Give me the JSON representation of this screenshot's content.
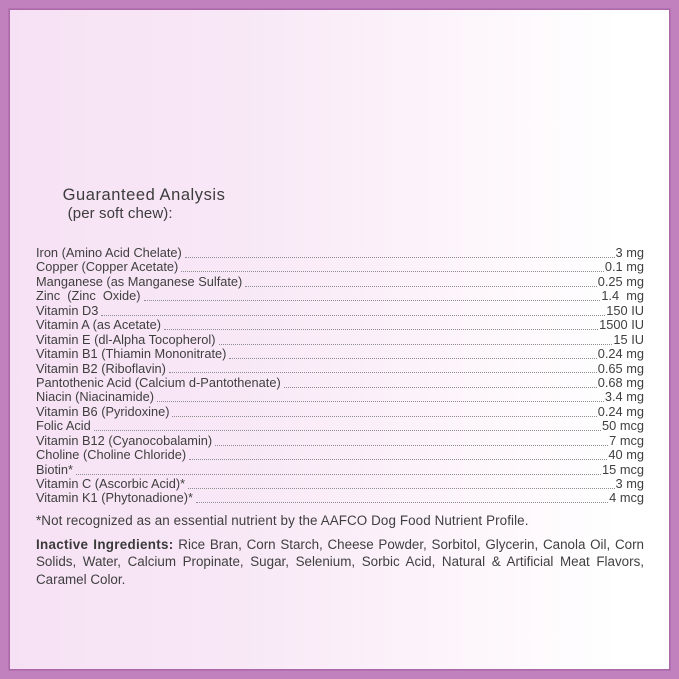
{
  "page": {
    "border_color": "#c181bf",
    "background_left_color": "#f6e1f4",
    "background_right_color": "#ffffff",
    "text_color": "#3f3f3f",
    "leader_dot_color": "#8d8d8d"
  },
  "label": {
    "heading_title": "Guaranteed Analysis",
    "heading_suffix": "(per soft chew):",
    "rows": [
      {
        "name": "Iron (Amino Acid Chelate)",
        "value": "3 mg"
      },
      {
        "name": "Copper (Copper Acetate)",
        "value": "0.1 mg"
      },
      {
        "name": "Manganese (as Manganese Sulfate)",
        "value": "0.25 mg"
      },
      {
        "name": "Zinc  (Zinc  Oxide)",
        "value": "1.4  mg"
      },
      {
        "name": "Vitamin D3",
        "value": "150 IU"
      },
      {
        "name": "Vitamin A (as Acetate)",
        "value": "1500 IU"
      },
      {
        "name": "Vitamin E (dl-Alpha Tocopherol)",
        "value": "15 IU"
      },
      {
        "name": "Vitamin B1 (Thiamin Mononitrate)",
        "value": "0.24 mg"
      },
      {
        "name": "Vitamin B2 (Riboflavin)",
        "value": "0.65 mg"
      },
      {
        "name": "Pantothenic Acid (Calcium d-Pantothenate)",
        "value": "0.68 mg"
      },
      {
        "name": "Niacin (Niacinamide)",
        "value": "3.4 mg"
      },
      {
        "name": "Vitamin B6 (Pyridoxine)",
        "value": "0.24 mg"
      },
      {
        "name": "Folic Acid",
        "value": "50 mcg"
      },
      {
        "name": "Vitamin B12 (Cyanocobalamin)",
        "value": "7 mcg"
      },
      {
        "name": "Choline (Choline Chloride)",
        "value": "40 mg"
      },
      {
        "name": "Biotin*",
        "value": "15 mcg"
      },
      {
        "name": "Vitamin C (Ascorbic Acid)*",
        "value": "3 mg"
      },
      {
        "name": "Vitamin K1 (Phytonadione)*",
        "value": "4 mcg"
      }
    ],
    "footnote": "*Not recognized as an essential nutrient by the AAFCO Dog Food Nutrient Profile.",
    "inactive_label": "Inactive Ingredients:",
    "inactive_text": "Rice Bran, Corn Starch, Cheese Powder, Sorbitol, Glycerin, Canola Oil, Corn Solids, Water, Calcium Propinate, Sugar, Selenium, Sorbic Acid, Natural & Artificial Meat Flavors, Caramel Color."
  }
}
